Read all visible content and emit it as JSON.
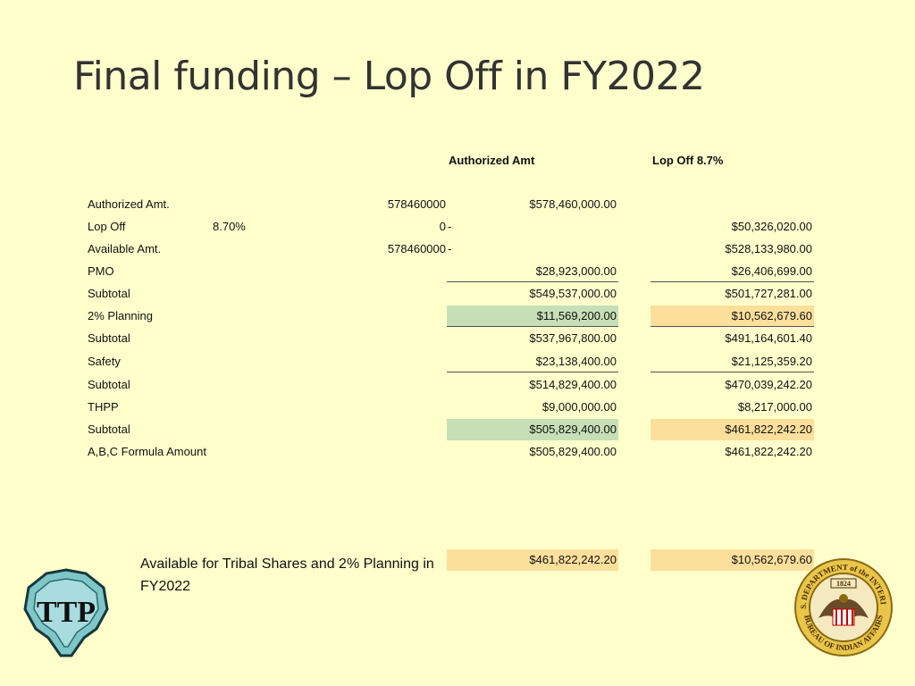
{
  "title": "Final funding – Lop Off  in FY2022",
  "headers": {
    "authorized": "Authorized Amt",
    "lopoff": "Lop Off 8.7%"
  },
  "rows": [
    {
      "label": "Authorized Amt.",
      "pct": "",
      "raw": "578460000",
      "dash": "",
      "auth": "$578,460,000.00",
      "lop": ""
    },
    {
      "label": "Lop Off",
      "pct": "8.70%",
      "raw": "0",
      "dash": "-",
      "auth": "",
      "lop": "$50,326,020.00"
    },
    {
      "label": "Available Amt.",
      "pct": "",
      "raw": "578460000",
      "dash": "-",
      "auth": "",
      "lop": "$528,133,980.00"
    },
    {
      "label": "PMO",
      "pct": "",
      "raw": "",
      "dash": "",
      "auth": "$28,923,000.00",
      "lop": "$26,406,699.00"
    },
    {
      "label": "Subtotal",
      "pct": "",
      "raw": "",
      "dash": "",
      "auth": "$549,537,000.00",
      "lop": "$501,727,281.00"
    },
    {
      "label": "2% Planning",
      "pct": "",
      "raw": "",
      "dash": "",
      "auth": "$11,569,200.00",
      "lop": "$10,562,679.60"
    },
    {
      "label": "Subtotal",
      "pct": "",
      "raw": "",
      "dash": "",
      "auth": "$537,967,800.00",
      "lop": "$491,164,601.40"
    },
    {
      "label": "Safety",
      "pct": "",
      "raw": "",
      "dash": "",
      "auth": "$23,138,400.00",
      "lop": "$21,125,359.20"
    },
    {
      "label": "Subtotal",
      "pct": "",
      "raw": "",
      "dash": "",
      "auth": "$514,829,400.00",
      "lop": "$470,039,242.20"
    },
    {
      "label": "THPP",
      "pct": "",
      "raw": "",
      "dash": "",
      "auth": "$9,000,000.00",
      "lop": "$8,217,000.00"
    },
    {
      "label": "Subtotal",
      "pct": "",
      "raw": "",
      "dash": "",
      "auth": "$505,829,400.00",
      "lop": "$461,822,242.20"
    },
    {
      "label": "A,B,C Formula Amount",
      "pct": "",
      "raw": "",
      "dash": "",
      "auth": "$505,829,400.00",
      "lop": "$461,822,242.20"
    }
  ],
  "available": {
    "label": "Available for Tribal Shares and 2% Planning in FY2022",
    "auth": "$461,822,242.20",
    "lop": "$10,562,679.60"
  },
  "logos": {
    "ttp_text": "TTP",
    "bia_top": "U.S. DEPARTMENT of the INTERIOR",
    "bia_bottom": "BUREAU OF INDIAN AFFAIRS",
    "bia_year": "1824"
  }
}
